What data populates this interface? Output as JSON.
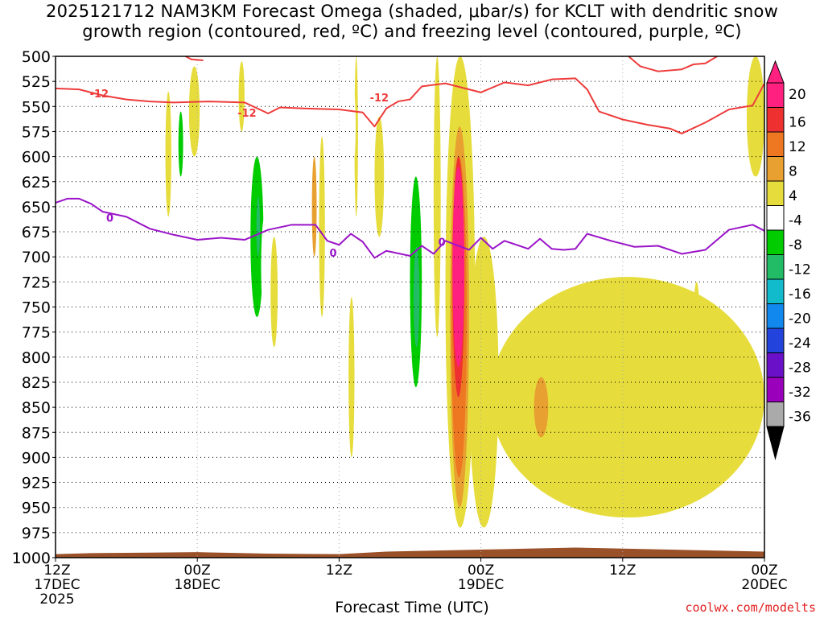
{
  "title": {
    "line1": "2025121712 NAM3KM Forecast Omega (shaded, μbar/s) for KCLT with dendritic snow",
    "line2": "growth region (contoured, red, ºC) and freezing level (contoured, purple, ºC)"
  },
  "credit": "coolwx.com/modelts",
  "chart_data": {
    "type": "heatmap",
    "xlabel": "Forecast Time (UTC)",
    "ylabel": "",
    "x_ticks": [
      {
        "hour": 0,
        "lines": [
          "12Z",
          "17DEC",
          "2025"
        ]
      },
      {
        "hour": 12,
        "lines": [
          "00Z",
          "18DEC"
        ]
      },
      {
        "hour": 24,
        "lines": [
          "12Z"
        ]
      },
      {
        "hour": 36,
        "lines": [
          "00Z",
          "19DEC"
        ]
      },
      {
        "hour": 48,
        "lines": [
          "12Z"
        ]
      },
      {
        "hour": 60,
        "lines": [
          "00Z",
          "20DEC"
        ]
      }
    ],
    "xlim": [
      0,
      60
    ],
    "y_ticks": [
      500,
      525,
      550,
      575,
      600,
      625,
      650,
      675,
      700,
      725,
      750,
      775,
      800,
      825,
      850,
      875,
      900,
      925,
      950,
      975,
      1000
    ],
    "ylim": [
      500,
      1000
    ],
    "colorbar": {
      "labels": [
        "20",
        "16",
        "12",
        "8",
        "4",
        "-4",
        "-8",
        "-12",
        "-16",
        "-20",
        "-24",
        "-28",
        "-32",
        "-36"
      ],
      "colors": [
        "#ff2080",
        "#ee3030",
        "#ee7722",
        "#e8a030",
        "#e6dc3c",
        "#ffffff",
        "#00cc00",
        "#22bb66",
        "#11bbcc",
        "#1188ee",
        "#2244dd",
        "#6a10c8",
        "#9a00bb",
        "#aaaaaa"
      ]
    },
    "contours": [
      {
        "name": "-12 ºC (dendritic growth)",
        "color": "#ee3c3c",
        "label": "-12",
        "points": [
          [
            0,
            532
          ],
          [
            2,
            533
          ],
          [
            4,
            539
          ],
          [
            6,
            543
          ],
          [
            8,
            545
          ],
          [
            10,
            546
          ],
          [
            13,
            545
          ],
          [
            16,
            546
          ],
          [
            18,
            557
          ],
          [
            19,
            551
          ],
          [
            21,
            552
          ],
          [
            24,
            553
          ],
          [
            26,
            556
          ],
          [
            27,
            570
          ],
          [
            28,
            552
          ],
          [
            29,
            545
          ],
          [
            30,
            543
          ],
          [
            31,
            530
          ],
          [
            33,
            527
          ],
          [
            35,
            533
          ],
          [
            36,
            536
          ],
          [
            37,
            531
          ],
          [
            38,
            526
          ],
          [
            40,
            529
          ],
          [
            42,
            523
          ],
          [
            44,
            522
          ],
          [
            45,
            533
          ],
          [
            46,
            555
          ],
          [
            48,
            563
          ],
          [
            50,
            568
          ],
          [
            52,
            572
          ],
          [
            53,
            577
          ],
          [
            55,
            566
          ],
          [
            57,
            553
          ],
          [
            59,
            549
          ],
          [
            60,
            527
          ]
        ]
      },
      {
        "name": "-12 ºC (upper)",
        "color": "#ee3c3c",
        "label": "",
        "points": [
          [
            11,
            500
          ],
          [
            11.5,
            503
          ],
          [
            12.5,
            504
          ]
        ]
      },
      {
        "name": "-12 ºC (upper right)",
        "color": "#ee3c3c",
        "label": "",
        "points": [
          [
            48.5,
            500
          ],
          [
            49.5,
            510
          ],
          [
            51,
            515
          ],
          [
            53,
            513
          ],
          [
            54,
            508
          ],
          [
            55,
            507
          ],
          [
            56,
            500
          ]
        ]
      },
      {
        "name": "0 ºC (freezing level)",
        "color": "#9a14c8",
        "label": "0",
        "points": [
          [
            0,
            646
          ],
          [
            1,
            642
          ],
          [
            2,
            642
          ],
          [
            3,
            647
          ],
          [
            4,
            655
          ],
          [
            6,
            660
          ],
          [
            8,
            672
          ],
          [
            10,
            678
          ],
          [
            12,
            683
          ],
          [
            14,
            681
          ],
          [
            16,
            683
          ],
          [
            18,
            673
          ],
          [
            20,
            668
          ],
          [
            22,
            668
          ],
          [
            23,
            684
          ],
          [
            24,
            688
          ],
          [
            25,
            677
          ],
          [
            26,
            685
          ],
          [
            27,
            701
          ],
          [
            28,
            694
          ],
          [
            30,
            699
          ],
          [
            31,
            689
          ],
          [
            32,
            697
          ],
          [
            33,
            684
          ],
          [
            35,
            693
          ],
          [
            36,
            681
          ],
          [
            37,
            692
          ],
          [
            38,
            684
          ],
          [
            40,
            692
          ],
          [
            41,
            682
          ],
          [
            42,
            692
          ],
          [
            43,
            693
          ],
          [
            44,
            692
          ],
          [
            45,
            677
          ],
          [
            47,
            684
          ],
          [
            49,
            690
          ],
          [
            51,
            689
          ],
          [
            53,
            697
          ],
          [
            55,
            693
          ],
          [
            57,
            673
          ],
          [
            59,
            668
          ],
          [
            60,
            674
          ]
        ]
      }
    ],
    "omega_regions": [
      {
        "t0": 4.4,
        "t1": 4.8,
        "p0": 560,
        "p1": 645,
        "level": "-4"
      },
      {
        "t0": 9.3,
        "t1": 9.8,
        "p0": 535,
        "p1": 660,
        "level": "4"
      },
      {
        "t0": 10.1,
        "t1": 11.2,
        "p0": 525,
        "p1": 650,
        "level": "-4"
      },
      {
        "t0": 10.4,
        "t1": 10.8,
        "p0": 555,
        "p1": 620,
        "level": "-8"
      },
      {
        "t0": 11.7,
        "t1": 12.4,
        "p0": 515,
        "p1": 590,
        "level": "-4"
      },
      {
        "t0": 11.3,
        "t1": 12.2,
        "p0": 510,
        "p1": 600,
        "level": "4"
      },
      {
        "t0": 15.5,
        "t1": 16.0,
        "p0": 505,
        "p1": 575,
        "level": "4"
      },
      {
        "t0": 16.0,
        "t1": 19.0,
        "p0": 535,
        "p1": 975,
        "level": "-4"
      },
      {
        "t0": 16.5,
        "t1": 17.6,
        "p0": 600,
        "p1": 760,
        "level": "-8"
      },
      {
        "t0": 17.0,
        "t1": 17.3,
        "p0": 640,
        "p1": 700,
        "level": "-12"
      },
      {
        "t0": 18.2,
        "t1": 18.8,
        "p0": 680,
        "p1": 790,
        "level": "4"
      },
      {
        "t0": 17.4,
        "t1": 18.0,
        "p0": 660,
        "p1": 760,
        "level": "-4"
      },
      {
        "t0": 20.0,
        "t1": 20.5,
        "p0": 840,
        "p1": 890,
        "level": "-4"
      },
      {
        "t0": 20.3,
        "t1": 22.0,
        "p0": 700,
        "p1": 960,
        "level": "-4"
      },
      {
        "t0": 21.0,
        "t1": 22.4,
        "p0": 820,
        "p1": 955,
        "level": "-8"
      },
      {
        "t0": 21.5,
        "t1": 22.6,
        "p0": 860,
        "p1": 960,
        "level": "-12"
      },
      {
        "t0": 20.8,
        "t1": 24.0,
        "p0": 740,
        "p1": 980,
        "level": "-4"
      },
      {
        "t0": 22.3,
        "t1": 22.8,
        "p0": 580,
        "p1": 760,
        "level": "4"
      },
      {
        "t0": 21.7,
        "t1": 22.1,
        "p0": 600,
        "p1": 700,
        "level": "8"
      },
      {
        "t0": 24.8,
        "t1": 25.3,
        "p0": 740,
        "p1": 900,
        "level": "4"
      },
      {
        "t0": 25.3,
        "t1": 25.6,
        "p0": 500,
        "p1": 660,
        "level": "4"
      },
      {
        "t0": 24.9,
        "t1": 25.4,
        "p0": 530,
        "p1": 610,
        "level": "-4"
      },
      {
        "t0": 27.0,
        "t1": 27.8,
        "p0": 560,
        "p1": 680,
        "level": "4"
      },
      {
        "t0": 29.7,
        "t1": 31.8,
        "p0": 540,
        "p1": 880,
        "level": "-4"
      },
      {
        "t0": 30.0,
        "t1": 31.0,
        "p0": 620,
        "p1": 830,
        "level": "-8"
      },
      {
        "t0": 30.3,
        "t1": 30.8,
        "p0": 690,
        "p1": 790,
        "level": "-12"
      },
      {
        "t0": 32.0,
        "t1": 32.6,
        "p0": 500,
        "p1": 780,
        "level": "4"
      },
      {
        "t0": 33.0,
        "t1": 35.5,
        "p0": 500,
        "p1": 970,
        "level": "4"
      },
      {
        "t0": 33.4,
        "t1": 35.0,
        "p0": 570,
        "p1": 950,
        "level": "8"
      },
      {
        "t0": 33.5,
        "t1": 34.8,
        "p0": 600,
        "p1": 920,
        "level": "12"
      },
      {
        "t0": 33.6,
        "t1": 34.6,
        "p0": 600,
        "p1": 840,
        "level": "16"
      },
      {
        "t0": 33.6,
        "t1": 34.6,
        "p0": 610,
        "p1": 810,
        "level": "20"
      },
      {
        "t0": 35.0,
        "t1": 37.5,
        "p0": 680,
        "p1": 970,
        "level": "4"
      },
      {
        "t0": 36.8,
        "t1": 60.0,
        "p0": 720,
        "p1": 960,
        "level": "4"
      },
      {
        "t0": 40.5,
        "t1": 41.7,
        "p0": 820,
        "p1": 880,
        "level": "8"
      },
      {
        "t0": 54.0,
        "t1": 54.5,
        "p0": 725,
        "p1": 800,
        "level": "4"
      },
      {
        "t0": 58.5,
        "t1": 60.0,
        "p0": 500,
        "p1": 620,
        "level": "4"
      }
    ]
  }
}
